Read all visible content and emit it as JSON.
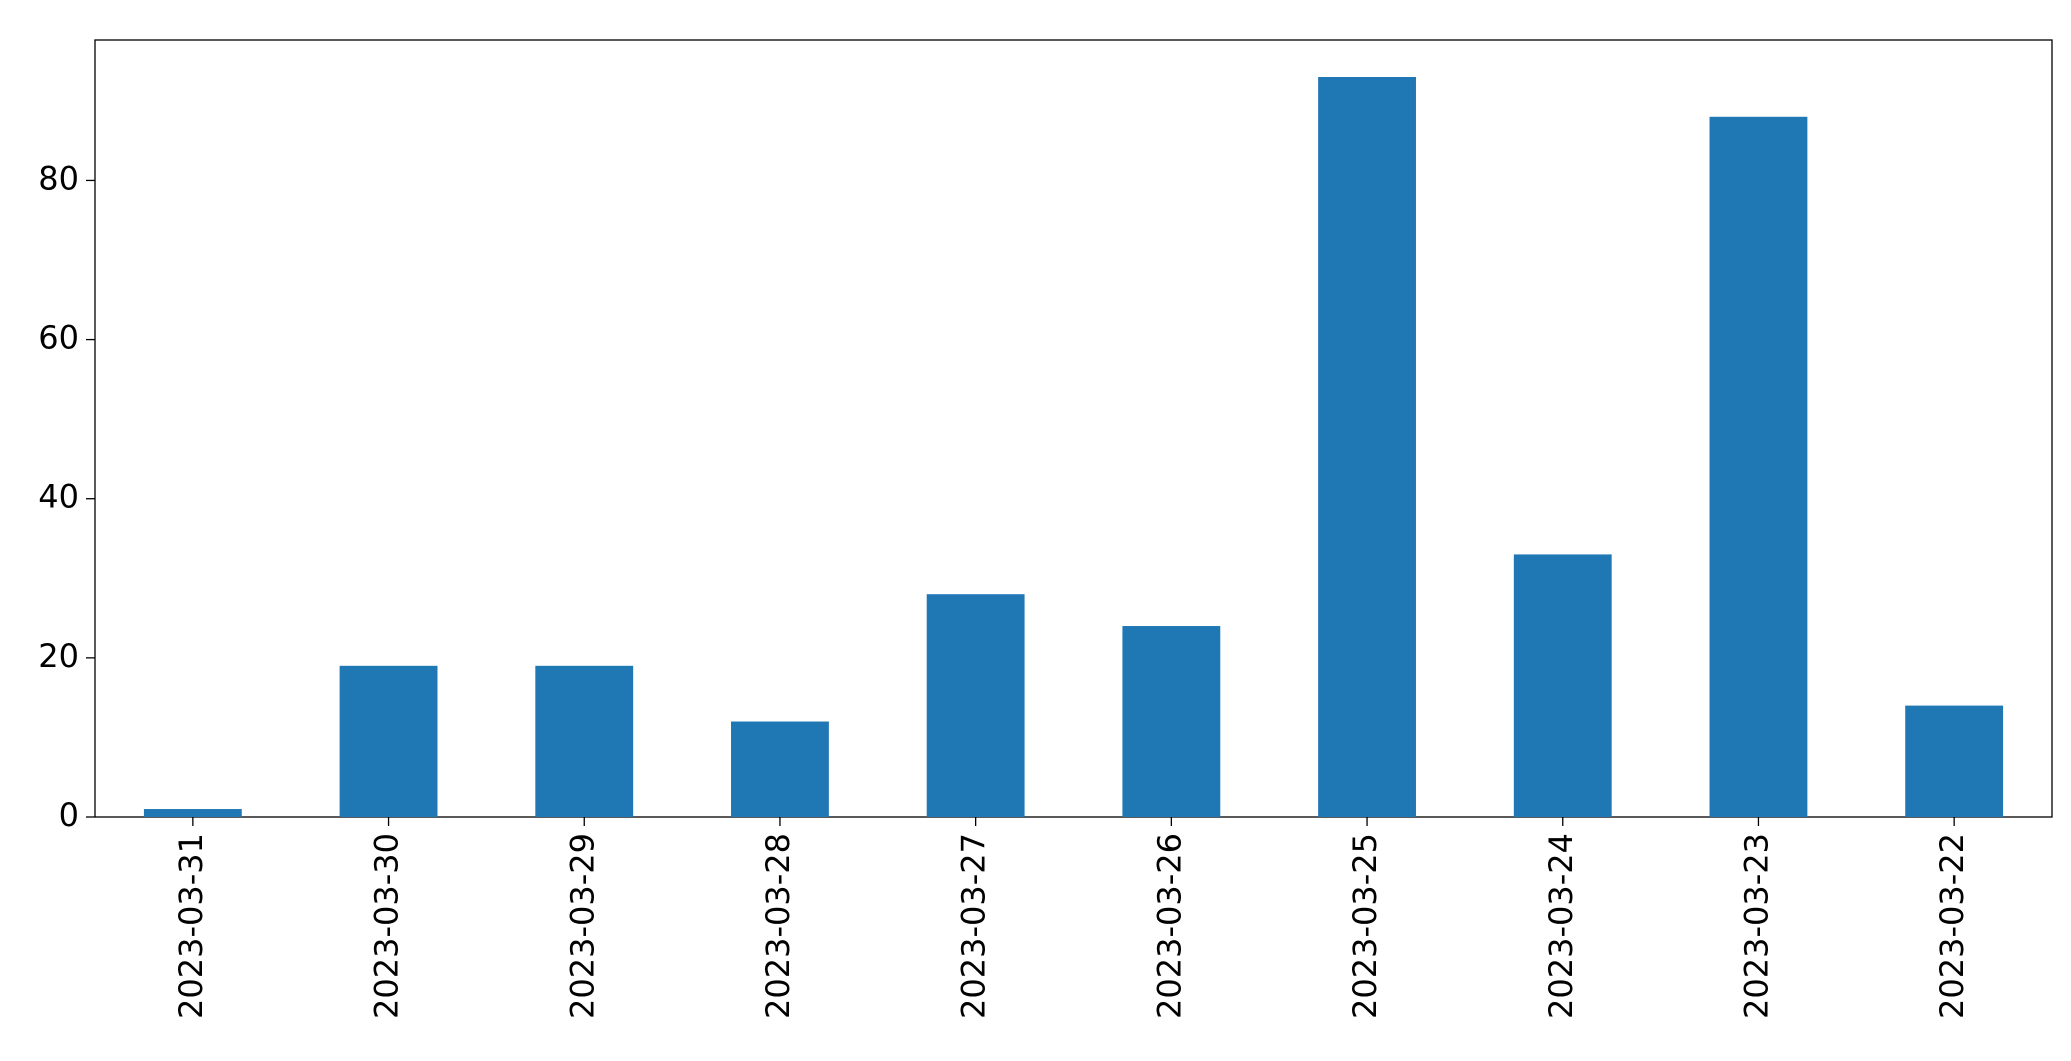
{
  "chart_data": {
    "type": "bar",
    "categories": [
      "2023-03-31",
      "2023-03-30",
      "2023-03-29",
      "2023-03-28",
      "2023-03-27",
      "2023-03-26",
      "2023-03-25",
      "2023-03-24",
      "2023-03-23",
      "2023-03-22"
    ],
    "values": [
      1,
      19,
      19,
      12,
      28,
      24,
      93,
      33,
      88,
      14
    ],
    "color": "#1f77b4",
    "ylim": [
      0,
      97.65
    ],
    "yticks": [
      0,
      20,
      40,
      60,
      80
    ],
    "grid": false
  }
}
